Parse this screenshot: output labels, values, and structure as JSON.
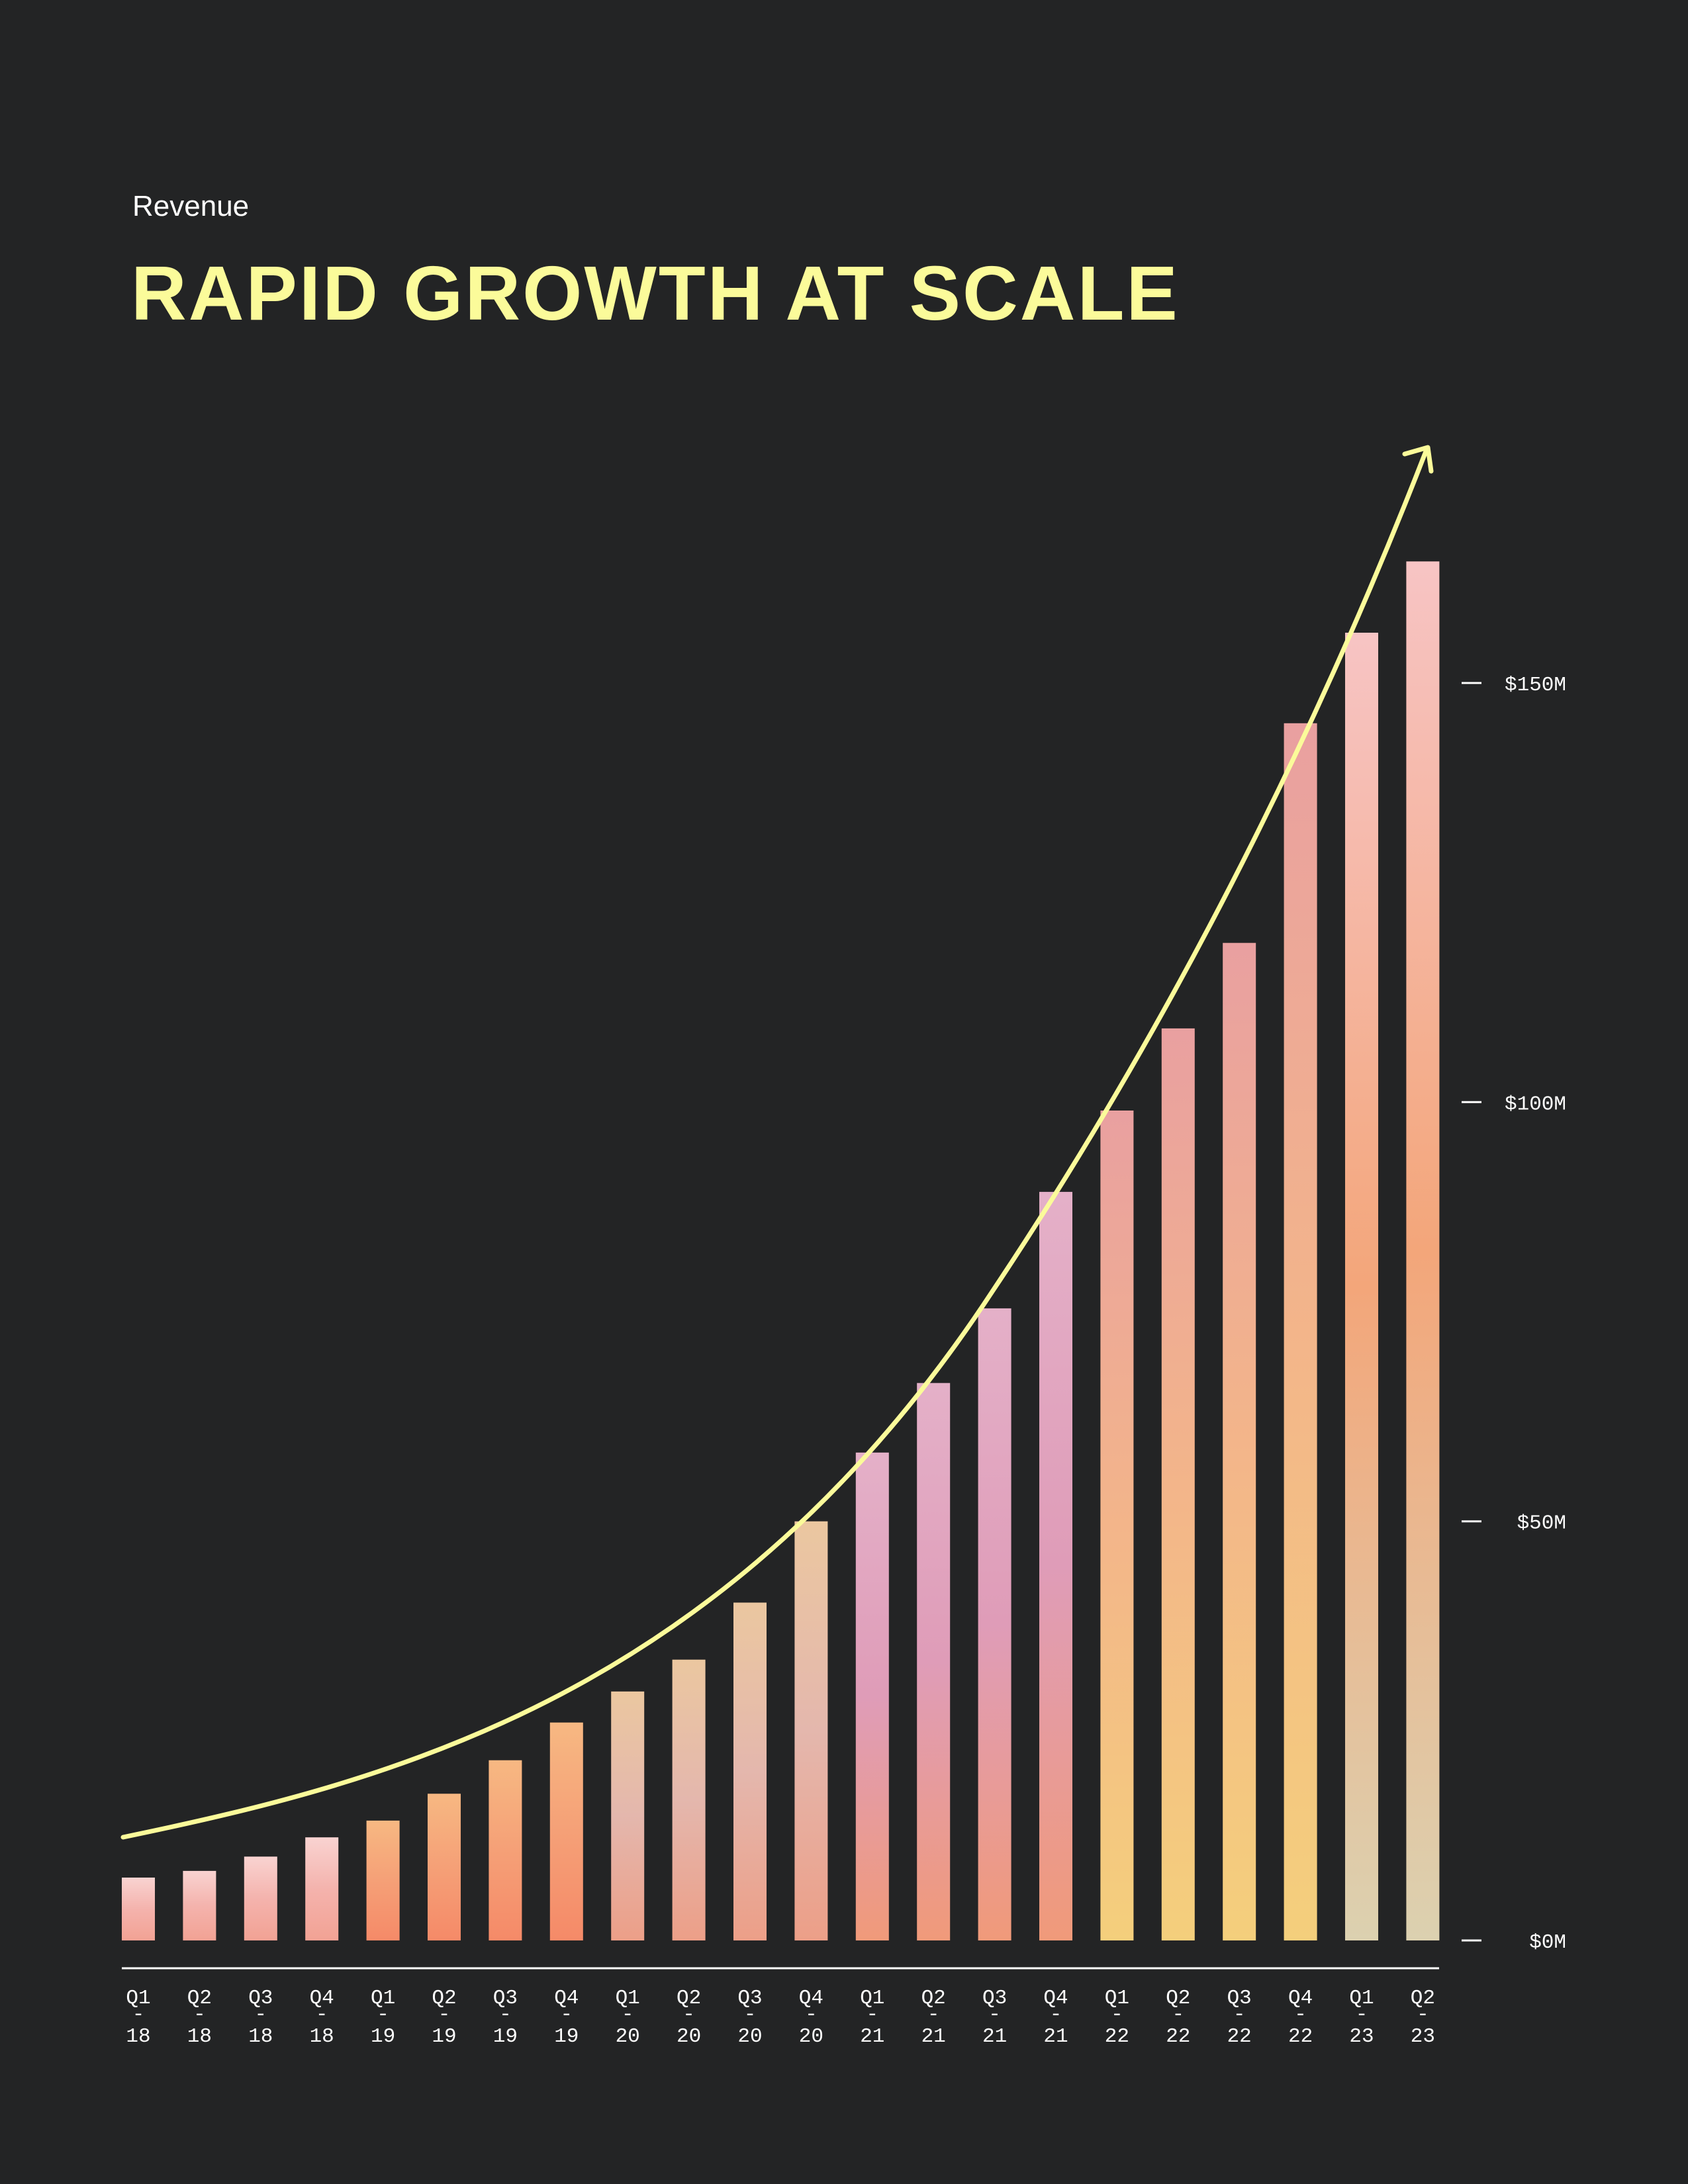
{
  "header": {
    "subtitle": "Revenue",
    "title": "RAPID GROWTH AT SCALE"
  },
  "chart_data": {
    "type": "bar",
    "title": "RAPID GROWTH AT SCALE",
    "subtitle": "Revenue",
    "xlabel": "",
    "ylabel": "",
    "ylim": [
      0,
      165
    ],
    "yticks": [
      0,
      50,
      100,
      150
    ],
    "ytick_labels": [
      "$0M",
      "$50M",
      "$100M",
      "$150M"
    ],
    "categories": [
      {
        "q": "Q1",
        "sep": "-",
        "yr": "18"
      },
      {
        "q": "Q2",
        "sep": "-",
        "yr": "18"
      },
      {
        "q": "Q3",
        "sep": "-",
        "yr": "18"
      },
      {
        "q": "Q4",
        "sep": "-",
        "yr": "18"
      },
      {
        "q": "Q1",
        "sep": "-",
        "yr": "19"
      },
      {
        "q": "Q2",
        "sep": "-",
        "yr": "19"
      },
      {
        "q": "Q3",
        "sep": "-",
        "yr": "19"
      },
      {
        "q": "Q4",
        "sep": "-",
        "yr": "19"
      },
      {
        "q": "Q1",
        "sep": "-",
        "yr": "20"
      },
      {
        "q": "Q2",
        "sep": "-",
        "yr": "20"
      },
      {
        "q": "Q3",
        "sep": "-",
        "yr": "20"
      },
      {
        "q": "Q4",
        "sep": "-",
        "yr": "20"
      },
      {
        "q": "Q1",
        "sep": "-",
        "yr": "21"
      },
      {
        "q": "Q2",
        "sep": "-",
        "yr": "21"
      },
      {
        "q": "Q3",
        "sep": "-",
        "yr": "21"
      },
      {
        "q": "Q4",
        "sep": "-",
        "yr": "21"
      },
      {
        "q": "Q1",
        "sep": "-",
        "yr": "22"
      },
      {
        "q": "Q2",
        "sep": "-",
        "yr": "22"
      },
      {
        "q": "Q3",
        "sep": "-",
        "yr": "22"
      },
      {
        "q": "Q4",
        "sep": "-",
        "yr": "22"
      },
      {
        "q": "Q1",
        "sep": "-",
        "yr": "23"
      },
      {
        "q": "Q2",
        "sep": "-",
        "yr": "23"
      }
    ],
    "values": [
      7.5,
      8.3,
      10,
      12.3,
      14.3,
      17.5,
      21.5,
      26,
      29.7,
      33.5,
      40.3,
      50,
      58.2,
      66.5,
      75.4,
      89.3,
      99,
      108.8,
      119,
      145.2,
      156,
      164.5
    ],
    "trend_arrow": true,
    "colors": {
      "background": "#232425",
      "title": "#fbfb9a",
      "trend_line": "#fbfb9a",
      "text": "#ffffff",
      "axis": "#ffffff",
      "bar_palette": [
        "#f9cfcf",
        "#f4a38e",
        "#f59a6f",
        "#f2c58a",
        "#e6b7b0",
        "#d8a6c0",
        "#e19cb7",
        "#f3ad7a",
        "#f5cf79",
        "#efe09a",
        "#dcd1b0"
      ]
    }
  }
}
